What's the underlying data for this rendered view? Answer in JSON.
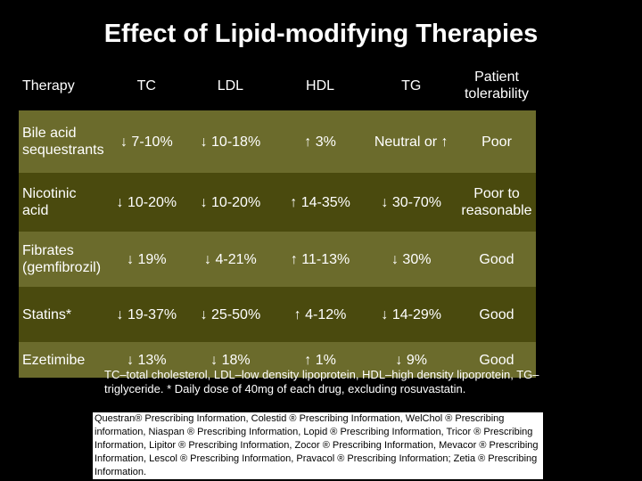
{
  "title": "Effect of Lipid-modifying Therapies",
  "header": [
    "Therapy",
    "TC",
    "LDL",
    "HDL",
    "TG",
    "Patient tolerability"
  ],
  "rows": [
    {
      "therapy": "Bile acid sequestrants",
      "tc": "↓ 7-10%",
      "ldl": "↓ 10-18%",
      "hdl": "↑ 3%",
      "tg": "Neutral or ↑",
      "tolerability": "Poor"
    },
    {
      "therapy": "Nicotinic acid",
      "tc": "↓ 10-20%",
      "ldl": "↓ 10-20%",
      "hdl": "↑ 14-35%",
      "tg": "↓ 30-70%",
      "tolerability": "Poor to reasonable"
    },
    {
      "therapy": "Fibrates (gemfibrozil)",
      "tc": "↓ 19%",
      "ldl": "↓ 4-21%",
      "hdl": "↑ 11-13%",
      "tg": "↓ 30%",
      "tolerability": "Good"
    },
    {
      "therapy": "Statins*",
      "tc": "↓ 19-37%",
      "ldl": "↓ 25-50%",
      "hdl": "↑ 4-12%",
      "tg": "↓ 14-29%",
      "tolerability": "Good"
    },
    {
      "therapy": "Ezetimibe",
      "tc": "↓ 13%",
      "ldl": "↓ 18%",
      "hdl": "↑ 1%",
      "tg": "↓ 9%",
      "tolerability": "Good"
    }
  ],
  "footnote": "TC–total cholesterol, LDL–low density lipoprotein, HDL–high density lipoprotein, TG–triglyceride. * Daily dose of 40mg of each drug, excluding rosuvastatin.",
  "references": "Questran® Prescribing Information, Colestid ® Prescribing Information, WelChol ® Prescribing information, Niaspan ® Prescribing Information, Lopid ® Prescribing Information, Tricor ® Prescribing Information, Lipitor ® Prescribing Information, Zocor ® Prescribing Information, Mevacor ® Prescribing Information, Lescol ® Prescribing Information, Pravacol ® Prescribing Information; Zetia ® Prescribing Information.",
  "colors": {
    "background": "#000000",
    "row_light": "#6b6b2c",
    "row_dark": "#4a4a0e",
    "text": "#ffffff"
  }
}
